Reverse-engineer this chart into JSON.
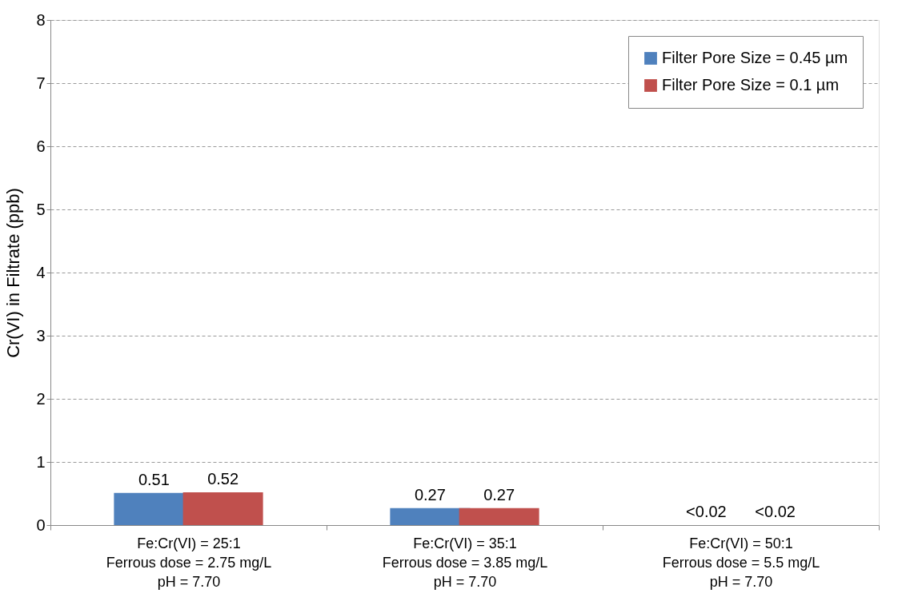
{
  "chart_data": {
    "type": "bar",
    "categories": [
      "Fe:Cr(VI) = 25:1\nFerrous dose = 2.75 mg/L\npH = 7.70",
      "Fe:Cr(VI) = 35:1\nFerrous dose = 3.85 mg/L\npH = 7.70",
      "Fe:Cr(VI) = 50:1\nFerrous dose = 5.5 mg/L\npH = 7.70"
    ],
    "series": [
      {
        "name": "Filter Pore Size = 0.45 µm",
        "color": "#4f81bd",
        "values": [
          0.51,
          0.27,
          null
        ],
        "value_labels": [
          "0.51",
          "0.27",
          "<0.02"
        ]
      },
      {
        "name": "Filter Pore Size = 0.1 µm",
        "color": "#c0504d",
        "values": [
          0.52,
          0.27,
          null
        ],
        "value_labels": [
          "0.52",
          "0.27",
          "<0.02"
        ]
      }
    ],
    "ylabel": "Cr(VI) in Filtrate (ppb)",
    "ylim": [
      0,
      8
    ],
    "yticks": [
      0,
      1,
      2,
      3,
      4,
      5,
      6,
      7,
      8
    ],
    "grid": "y",
    "legend": "top right"
  }
}
